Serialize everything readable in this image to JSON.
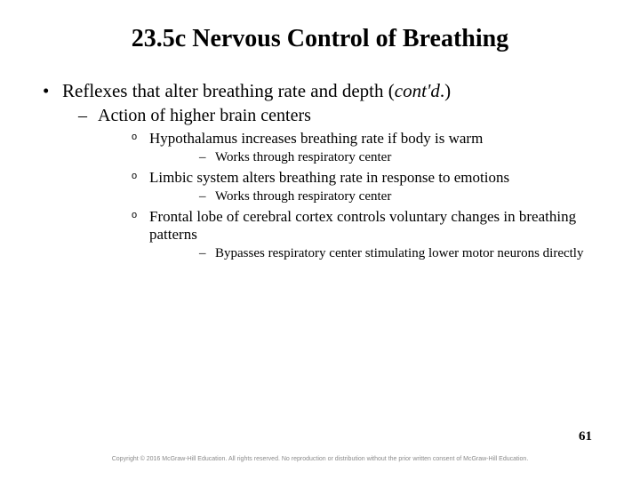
{
  "title": "23.5c Nervous Control of Breathing",
  "bullet1_prefix": "Reflexes that alter breathing rate and depth (",
  "bullet1_italic": "cont'd",
  "bullet1_suffix": ".)",
  "bullet2": "Action of higher brain centers",
  "bullet3a": "Hypothalamus increases breathing rate if body is warm",
  "bullet4a": "Works through respiratory center",
  "bullet3b": "Limbic system alters breathing rate in response to emotions",
  "bullet4b": "Works through respiratory center",
  "bullet3c": "Frontal lobe of cerebral cortex controls voluntary changes in breathing patterns",
  "bullet4c": "Bypasses respiratory center stimulating lower motor neurons directly",
  "pagenum": "61",
  "copyright": "Copyright © 2016 McGraw-Hill Education. All rights reserved. No reproduction or distribution without the prior written consent of McGraw-Hill Education."
}
